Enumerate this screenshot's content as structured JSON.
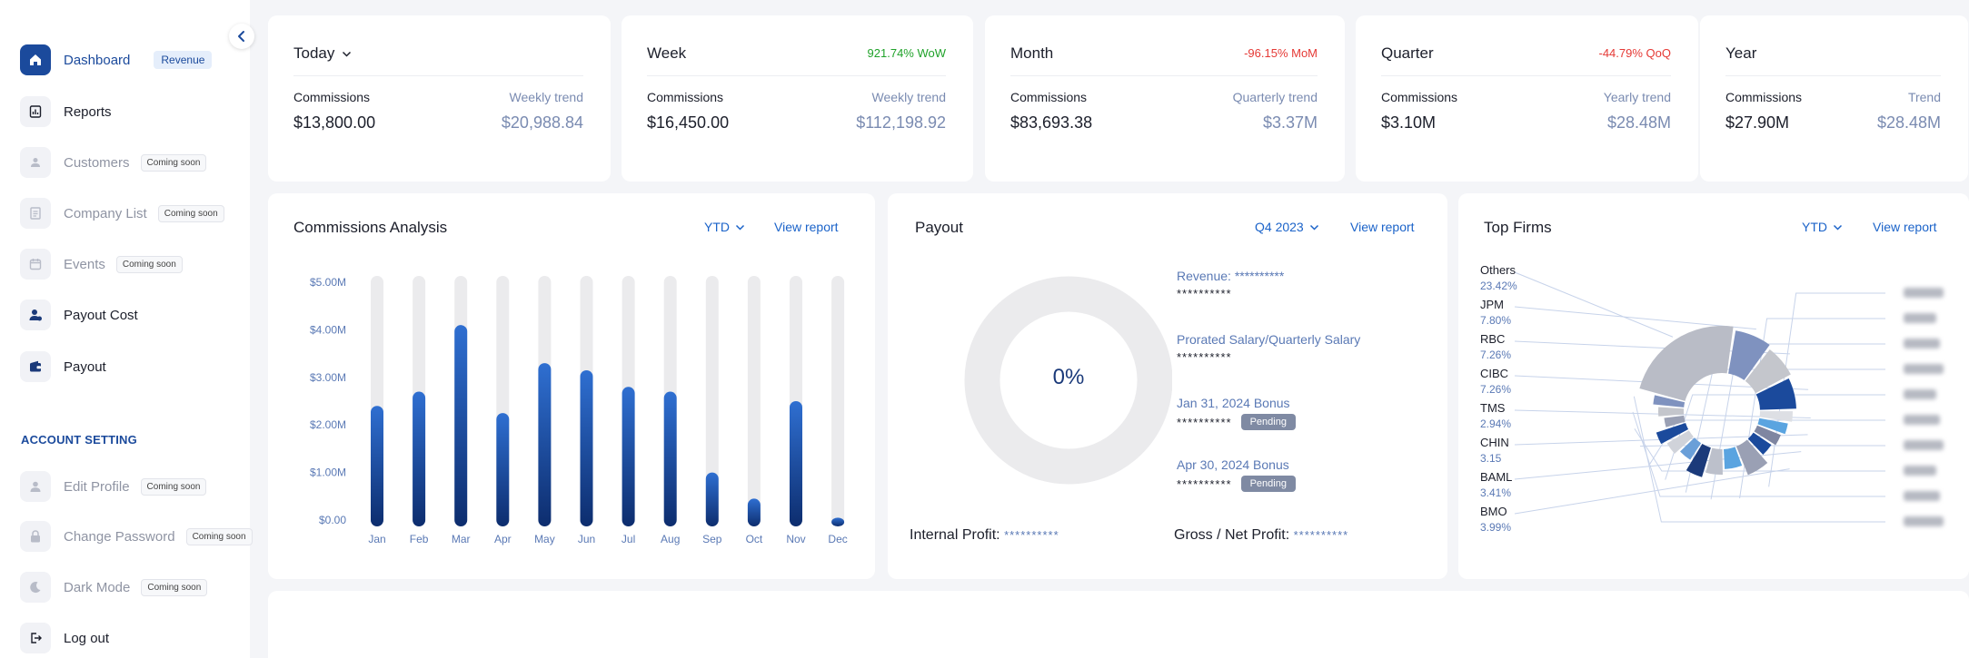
{
  "sidebar": {
    "items": [
      {
        "label": "Dashboard",
        "badge": "Revenue",
        "icon": "home-icon",
        "active": true
      },
      {
        "label": "Reports",
        "badge": "",
        "icon": "report-icon"
      },
      {
        "label": "Customers",
        "badge": "Coming soon",
        "icon": "users-icon"
      },
      {
        "label": "Company List",
        "badge": "Coming soon",
        "icon": "list-icon"
      },
      {
        "label": "Events",
        "badge": "Coming soon",
        "icon": "calendar-icon"
      },
      {
        "label": "Payout Cost",
        "badge": "",
        "icon": "user-cost-icon"
      },
      {
        "label": "Payout",
        "badge": "",
        "icon": "wallet-icon"
      }
    ],
    "account_title": "ACCOUNT SETTING",
    "account_items": [
      {
        "label": "Edit Profile",
        "badge": "Coming soon",
        "icon": "profile-icon"
      },
      {
        "label": "Change Password",
        "badge": "Coming soon",
        "icon": "lock-icon"
      },
      {
        "label": "Dark Mode",
        "badge": "Coming soon",
        "icon": "moon-icon"
      },
      {
        "label": "Log out",
        "badge": "",
        "icon": "logout-icon"
      }
    ]
  },
  "stats": [
    {
      "title": "Today",
      "change": "",
      "sub": "Commissions",
      "value": "$13,800.00",
      "trend_label": "Weekly trend",
      "trend_value": "$20,988.84"
    },
    {
      "title": "Week",
      "change": "921.74% WoW",
      "change_dir": "up",
      "sub": "Commissions",
      "value": "$16,450.00",
      "trend_label": "Weekly trend",
      "trend_value": "$112,198.92"
    },
    {
      "title": "Month",
      "change": "-96.15% MoM",
      "change_dir": "down",
      "sub": "Commissions",
      "value": "$83,693.38",
      "trend_label": "Quarterly trend",
      "trend_value": "$3.37M"
    },
    {
      "title": "Quarter",
      "change": "-44.79% QoQ",
      "change_dir": "down",
      "sub": "Commissions",
      "value": "$3.10M",
      "trend_label": "Yearly trend",
      "trend_value": "$28.48M"
    },
    {
      "title": "Year",
      "change": "",
      "sub": "Commissions",
      "value": "$27.90M",
      "trend_label": "Trend",
      "trend_value": "$28.48M"
    }
  ],
  "commissions": {
    "title": "Commissions Analysis",
    "filter": "YTD",
    "view_report": "View report"
  },
  "payout": {
    "title": "Payout",
    "filter": "Q4 2023",
    "view_report": "View report",
    "donut_value": "0%",
    "items": [
      {
        "label": "Revenue: **********",
        "value": "**********",
        "status": ""
      },
      {
        "label": "Prorated Salary/Quarterly Salary",
        "value": "**********",
        "status": ""
      },
      {
        "label": "Jan 31, 2024 Bonus",
        "value": "**********",
        "status": "Pending"
      },
      {
        "label": "Apr 30, 2024 Bonus",
        "value": "**********",
        "status": "Pending"
      }
    ],
    "internal_profit_label": "Internal Profit:",
    "internal_profit_value": "**********",
    "gross_profit_label": "Gross / Net Profit:",
    "gross_profit_value": "**********"
  },
  "top_firms": {
    "title": "Top Firms",
    "filter": "YTD",
    "view_report": "View report",
    "firms": [
      {
        "name": "Others",
        "pct": "23.42%"
      },
      {
        "name": "JPM",
        "pct": "7.80%"
      },
      {
        "name": "RBC",
        "pct": "7.26%"
      },
      {
        "name": "CIBC",
        "pct": "7.26%"
      },
      {
        "name": "TMS",
        "pct": "2.94%"
      },
      {
        "name": "CHIN",
        "pct": "3.15"
      },
      {
        "name": "BAML",
        "pct": "3.41%"
      },
      {
        "name": "BMO",
        "pct": "3.99%"
      }
    ]
  },
  "colors": {
    "accent": "#1b4a9c",
    "link": "#1b63c9",
    "up": "#20a22a",
    "down": "#e53935",
    "bar_top": "#2f6fd1",
    "bar_bottom": "#0d2d6e",
    "track": "#ebebed"
  },
  "chart_data": [
    {
      "type": "bar",
      "title": "Commissions Analysis",
      "categories": [
        "Jan",
        "Feb",
        "Mar",
        "Apr",
        "May",
        "Jun",
        "Jul",
        "Aug",
        "Sep",
        "Oct",
        "Nov",
        "Dec"
      ],
      "values": [
        2.4,
        2.7,
        4.1,
        2.25,
        3.3,
        3.15,
        2.8,
        2.7,
        1.0,
        0.45,
        2.5,
        0.05
      ],
      "yticks": [
        "$0.00",
        "$1.00M",
        "$2.00M",
        "$3.00M",
        "$4.00M",
        "$5.00M"
      ],
      "ylim": [
        0,
        5
      ],
      "grid": false
    },
    {
      "type": "pie",
      "title": "Top Firms",
      "categories": [
        "Others",
        "JPM",
        "RBC",
        "CIBC",
        "TMS",
        "CHIN",
        "BAML",
        "BMO"
      ],
      "values": [
        23.42,
        7.8,
        7.26,
        7.26,
        2.94,
        3.15,
        3.41,
        3.99
      ]
    }
  ]
}
